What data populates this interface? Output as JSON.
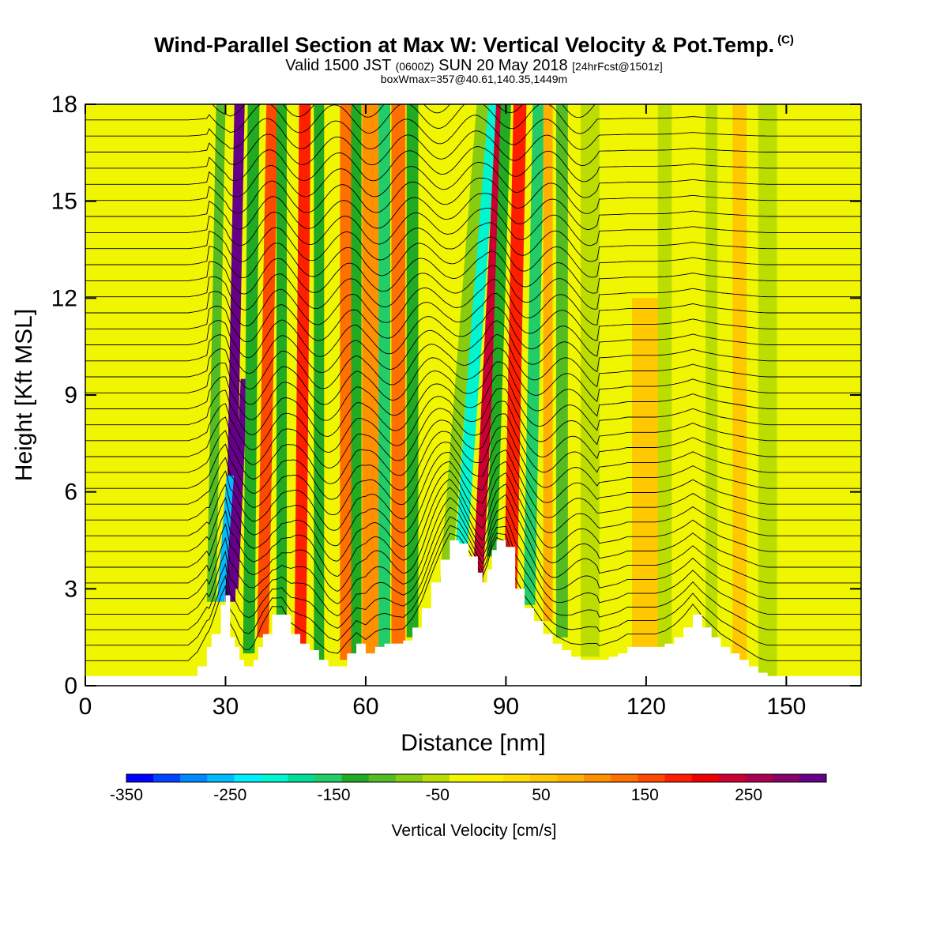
{
  "header": {
    "title": "Wind-Parallel Section at Max W: Vertical Velocity & Pot.Temp.",
    "copyright": "(C)",
    "valid_prefix": "Valid 1500 JST",
    "valid_utc": "(0600Z)",
    "valid_date": "SUN 20 May 2018",
    "forecast": "[24hrFcst@1501z]",
    "boxwmax": "boxWmax=357@40.61,140.35,1449m"
  },
  "chart_data": {
    "type": "heatmap",
    "title": "Wind-Parallel Section at Max W: Vertical Velocity & Pot.Temp.",
    "xlabel": "Distance [nm]",
    "ylabel": "Height [Kft MSL]",
    "xlim": [
      0,
      166
    ],
    "ylim": [
      0,
      18
    ],
    "x_ticks": [
      "0",
      "30",
      "60",
      "90",
      "120",
      "150"
    ],
    "y_ticks": [
      "0",
      "3",
      "6",
      "9",
      "12",
      "15",
      "18"
    ],
    "colorbar": {
      "label": "Vertical Velocity [cm/s]",
      "range": [
        -350,
        325
      ],
      "tick_labels": [
        "-350",
        "-250",
        "-150",
        "-50",
        "50",
        "150",
        "250"
      ],
      "colors": [
        "#0000ff",
        "#0044ff",
        "#0088ff",
        "#00bbff",
        "#00eeff",
        "#00f5d0",
        "#00dd99",
        "#22cc66",
        "#22aa22",
        "#55bb22",
        "#88cc11",
        "#bbdd00",
        "#f0f500",
        "#ffee00",
        "#ffdd00",
        "#ffc800",
        "#ffb000",
        "#ff9000",
        "#ff7000",
        "#ff4800",
        "#ff1e00",
        "#ee0000",
        "#cc0030",
        "#aa0050",
        "#880068",
        "#660088"
      ]
    },
    "terrain_kft": {
      "x": [
        0,
        22,
        24,
        26,
        27,
        29,
        30,
        31,
        32,
        33,
        34,
        35,
        36,
        37,
        38,
        40,
        42,
        44,
        46,
        48,
        50,
        52,
        54,
        56,
        58,
        60,
        62,
        64,
        66,
        68,
        70,
        72,
        74,
        76,
        78,
        80,
        82,
        84,
        85,
        86,
        87,
        88,
        90,
        92,
        94,
        96,
        98,
        100,
        102,
        104,
        106,
        108,
        110,
        112,
        114,
        116,
        118,
        120,
        122,
        124,
        126,
        128,
        130,
        132,
        134,
        136,
        138,
        140,
        142,
        144,
        146,
        148,
        150,
        152,
        154,
        156,
        158,
        160,
        162,
        166
      ],
      "heights": [
        0.3,
        0.3,
        0.6,
        1.2,
        1.6,
        2.5,
        2.8,
        1.5,
        1.2,
        0.8,
        0.6,
        0.6,
        0.8,
        1.2,
        1.6,
        2.2,
        2.2,
        1.6,
        1.3,
        1.1,
        0.8,
        0.6,
        0.6,
        1.0,
        1.3,
        1.0,
        1.2,
        1.3,
        1.3,
        1.4,
        1.8,
        2.4,
        3.2,
        3.9,
        4.5,
        4.4,
        4.0,
        3.5,
        3.2,
        3.6,
        4.2,
        4.5,
        4.3,
        3.0,
        2.4,
        2.0,
        1.6,
        1.3,
        1.1,
        0.9,
        0.8,
        0.8,
        0.8,
        0.9,
        1.0,
        1.2,
        1.2,
        1.2,
        1.2,
        1.3,
        1.5,
        1.8,
        2.2,
        1.8,
        1.5,
        1.2,
        1.0,
        0.8,
        0.6,
        0.4,
        0.3,
        0.3,
        0.3,
        0.3,
        0.3,
        0.3,
        0.3,
        0.3,
        0.3,
        0.3
      ]
    },
    "vertical_velocity_bands": [
      {
        "x_base": 31,
        "x_top": 33,
        "width": 2.2,
        "z0": 2.6,
        "z1": 18,
        "value": 300
      },
      {
        "x_base": 32,
        "x_top": 34,
        "width": 1.5,
        "z0": 3.0,
        "z1": 9.5,
        "value": 330
      },
      {
        "x_base": 29,
        "x_top": 31,
        "width": 1.6,
        "z0": 2.6,
        "z1": 6.5,
        "value": -270
      },
      {
        "x_base": 27,
        "x_top": 29,
        "width": 2.0,
        "z0": 2.6,
        "z1": 18,
        "value": -110
      },
      {
        "x_base": 35,
        "x_top": 36,
        "width": 2.5,
        "z0": 1.0,
        "z1": 18,
        "value": -130
      },
      {
        "x_base": 38,
        "x_top": 40,
        "width": 2.5,
        "z0": 1.5,
        "z1": 18,
        "value": 160
      },
      {
        "x_base": 42,
        "x_top": 42,
        "width": 2.2,
        "z0": 1.5,
        "z1": 18,
        "value": -140
      },
      {
        "x_base": 46,
        "x_top": 47,
        "width": 2.5,
        "z0": 1.0,
        "z1": 18,
        "value": 170
      },
      {
        "x_base": 50,
        "x_top": 50,
        "width": 2.2,
        "z0": 0.8,
        "z1": 18,
        "value": -130
      },
      {
        "x_base": 56,
        "x_top": 56,
        "width": 3.0,
        "z0": 0.8,
        "z1": 18,
        "value": 120
      },
      {
        "x_base": 58,
        "x_top": 58,
        "width": 2.2,
        "z0": 1.0,
        "z1": 18,
        "value": -120
      },
      {
        "x_base": 61,
        "x_top": 61,
        "width": 3.5,
        "z0": 1.0,
        "z1": 18,
        "value": 110
      },
      {
        "x_base": 64,
        "x_top": 64,
        "width": 2.5,
        "z0": 1.2,
        "z1": 18,
        "value": -150
      },
      {
        "x_base": 67,
        "x_top": 67,
        "width": 3.0,
        "z0": 1.3,
        "z1": 18,
        "value": 130
      },
      {
        "x_base": 70,
        "x_top": 70,
        "width": 2.5,
        "z0": 1.5,
        "z1": 18,
        "value": -140
      },
      {
        "x_base": 80,
        "x_top": 87,
        "width": 2.6,
        "z0": 3.2,
        "z1": 18,
        "value": -200
      },
      {
        "x_base": 77,
        "x_top": 85,
        "width": 2.5,
        "z0": 3.0,
        "z1": 18,
        "value": -90
      },
      {
        "x_base": 84,
        "x_top": 89,
        "width": 2.2,
        "z0": 3.2,
        "z1": 18,
        "value": 230
      },
      {
        "x_base": 87,
        "x_top": 90,
        "width": 2.2,
        "z0": 4.0,
        "z1": 18,
        "value": -130
      },
      {
        "x_base": 91,
        "x_top": 93,
        "width": 2.8,
        "z0": 3.0,
        "z1": 18,
        "value": 170
      },
      {
        "x_base": 95,
        "x_top": 97,
        "width": 2.5,
        "z0": 2.5,
        "z1": 18,
        "value": -150
      },
      {
        "x_base": 99,
        "x_top": 99,
        "width": 2.0,
        "z0": 2.0,
        "z1": 18,
        "value": 90
      },
      {
        "x_base": 102,
        "x_top": 102,
        "width": 2.5,
        "z0": 1.5,
        "z1": 18,
        "value": -110
      },
      {
        "x_base": 108,
        "x_top": 108,
        "width": 4.0,
        "z0": 0.9,
        "z1": 18,
        "value": -60
      },
      {
        "x_base": 120,
        "x_top": 120,
        "width": 6.0,
        "z0": 1.2,
        "z1": 12,
        "value": 55
      },
      {
        "x_base": 124,
        "x_top": 124,
        "width": 3.0,
        "z0": 1.2,
        "z1": 18,
        "value": -60
      },
      {
        "x_base": 134,
        "x_top": 134,
        "width": 2.5,
        "z0": 1.0,
        "z1": 18,
        "value": -60
      },
      {
        "x_base": 140,
        "x_top": 140,
        "width": 3.0,
        "z0": 0.6,
        "z1": 18,
        "value": 60
      },
      {
        "x_base": 146,
        "x_top": 146,
        "width": 4.0,
        "z0": 0.3,
        "z1": 18,
        "value": -50
      }
    ],
    "potential_temperature_contours": {
      "count": 36,
      "base_kft": 0.5,
      "spacing_kft": 0.5,
      "note_label_positions_kft": [
        [
          1,
          15.8
        ],
        [
          20,
          14.0
        ],
        [
          11,
          10.2
        ],
        [
          25,
          8.4
        ],
        [
          1,
          4.0
        ],
        [
          41,
          16.3
        ],
        [
          38,
          13.9
        ],
        [
          52,
          12.7
        ],
        [
          54,
          5.9
        ]
      ]
    }
  }
}
